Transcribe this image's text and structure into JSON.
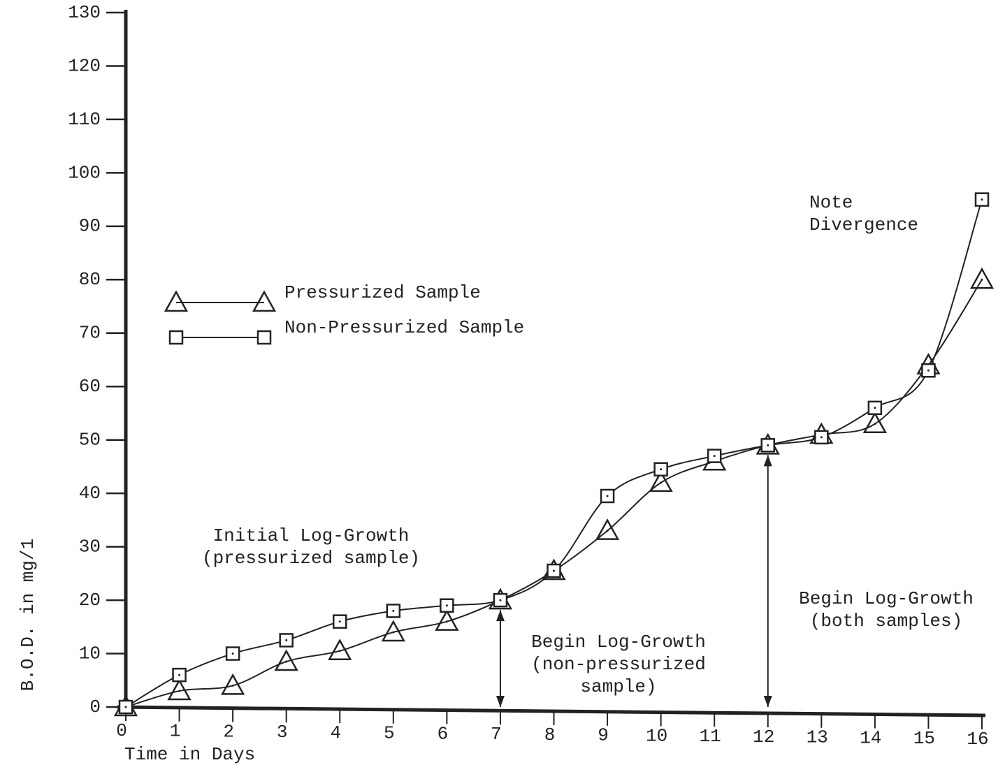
{
  "chart_data": {
    "type": "line",
    "xlabel": "Time in Days",
    "ylabel": "B.O.D. in mg/1",
    "x": [
      0,
      1,
      2,
      3,
      4,
      5,
      6,
      7,
      8,
      9,
      10,
      11,
      12,
      13,
      14,
      15,
      16
    ],
    "series": [
      {
        "name": "Pressurized Sample",
        "marker": "triangle",
        "color": "#222222",
        "values": [
          0,
          3,
          4,
          8.5,
          10.5,
          14,
          16,
          20,
          25.5,
          33,
          42,
          46,
          49,
          51,
          53,
          64,
          80
        ]
      },
      {
        "name": "Non-Pressurized Sample",
        "marker": "square",
        "color": "#222222",
        "values": [
          0,
          6,
          10,
          12.5,
          16,
          18,
          19,
          20,
          25.5,
          39.5,
          44.5,
          47,
          49,
          50.5,
          56,
          63,
          95
        ]
      }
    ],
    "xlim": [
      0,
      16
    ],
    "xticks": [
      0,
      1,
      2,
      3,
      4,
      5,
      6,
      7,
      8,
      9,
      10,
      11,
      12,
      13,
      14,
      15,
      16
    ],
    "ylim": [
      0,
      130
    ],
    "yticks": [
      0,
      10,
      20,
      30,
      40,
      50,
      60,
      70,
      80,
      90,
      100,
      110,
      120,
      130
    ],
    "annotations": [
      {
        "lines": [
          "Note",
          "Divergence"
        ]
      },
      {
        "lines": [
          "Initial Log-Growth",
          "(pressurized sample)"
        ]
      },
      {
        "lines": [
          "Begin Log-Growth",
          "(non-pressurized",
          "sample)"
        ],
        "x": 7
      },
      {
        "lines": [
          "Begin Log-Growth",
          "(both samples)"
        ],
        "x": 12
      }
    ]
  }
}
